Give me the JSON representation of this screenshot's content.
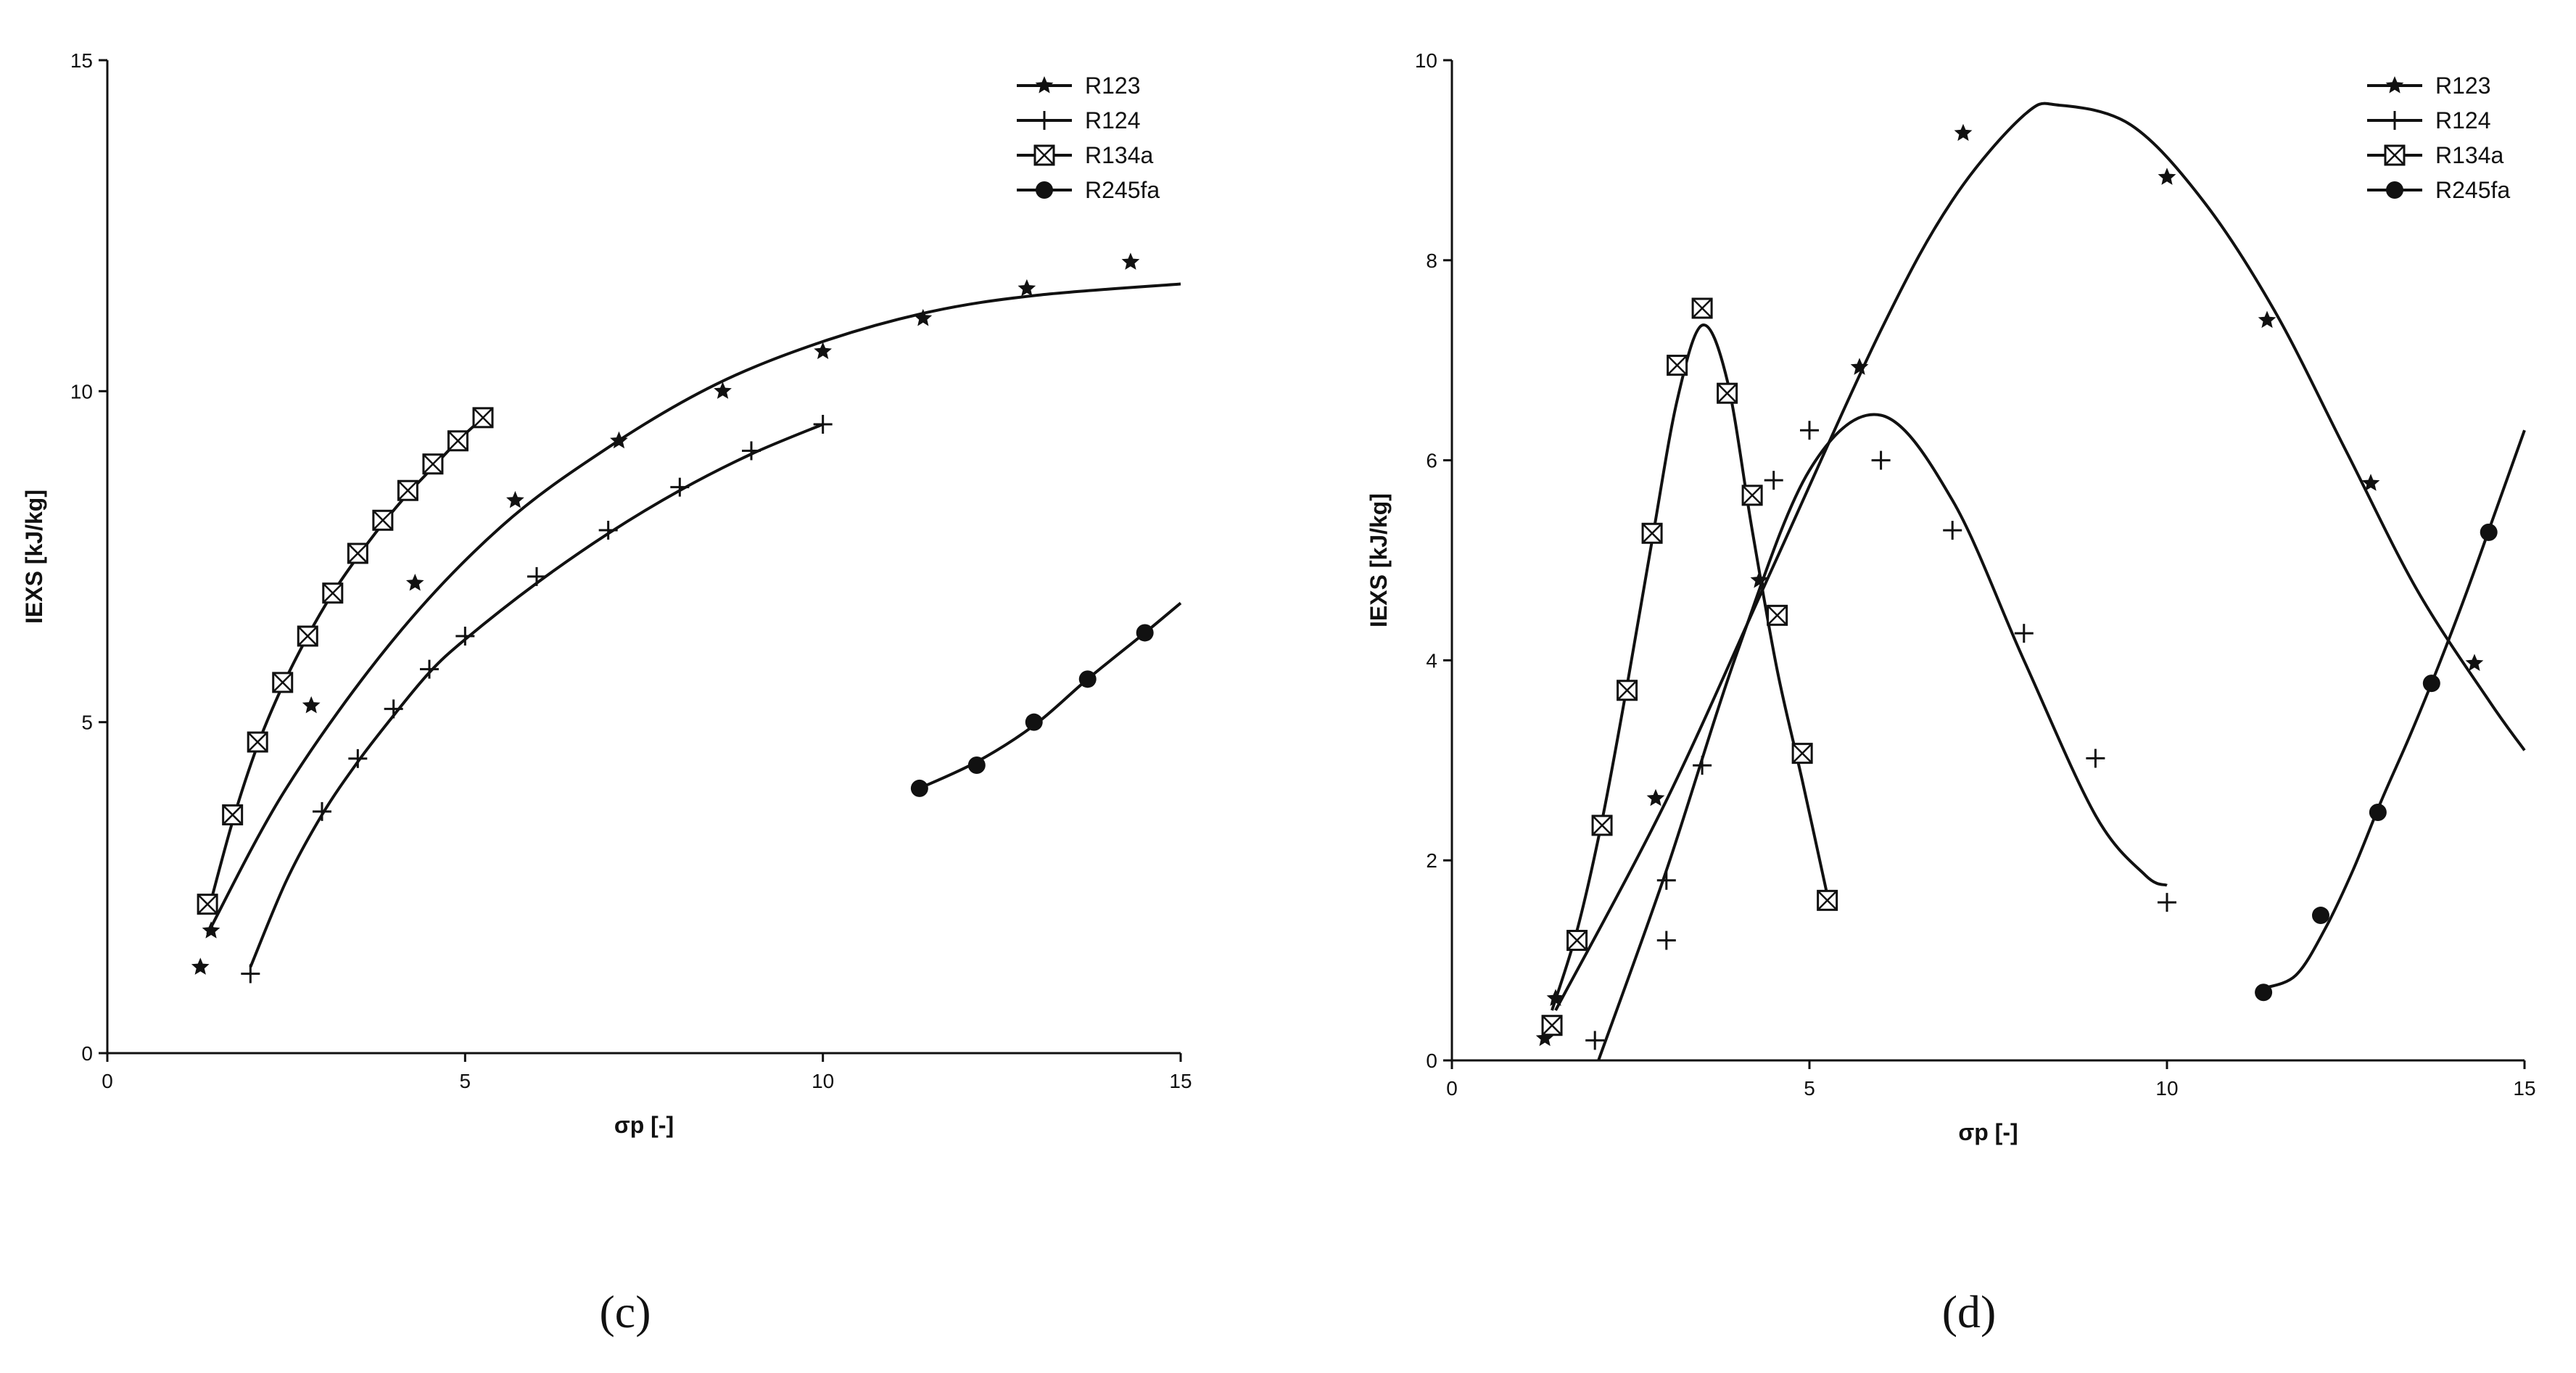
{
  "chart_data": [
    {
      "type": "scatter",
      "panel_label": "(c)",
      "xlabel": "σp [-]",
      "ylabel": "IEXS [kJ/kg]",
      "xlim": [
        0,
        15
      ],
      "ylim": [
        0,
        15
      ],
      "xticks": [
        0,
        5,
        10,
        15
      ],
      "yticks": [
        0,
        5,
        10,
        15
      ],
      "legend_position": "top-right",
      "series": [
        {
          "name": "R123",
          "marker": "star",
          "points": [
            [
              1.3,
              1.3
            ],
            [
              1.45,
              1.85
            ],
            [
              2.85,
              5.25
            ],
            [
              4.3,
              7.1
            ],
            [
              5.7,
              8.35
            ],
            [
              7.15,
              9.25
            ],
            [
              8.6,
              10.0
            ],
            [
              10.0,
              10.6
            ],
            [
              11.4,
              11.1
            ],
            [
              12.85,
              11.55
            ],
            [
              14.3,
              11.95
            ]
          ],
          "fit": [
            [
              1.4,
              1.8
            ],
            [
              2.5,
              4.0
            ],
            [
              4.0,
              6.25
            ],
            [
              5.5,
              7.95
            ],
            [
              7.0,
              9.15
            ],
            [
              8.5,
              10.1
            ],
            [
              10.0,
              10.75
            ],
            [
              11.5,
              11.2
            ],
            [
              13.0,
              11.45
            ],
            [
              15.0,
              11.62
            ]
          ]
        },
        {
          "name": "R124",
          "marker": "plus",
          "points": [
            [
              2.0,
              1.2
            ],
            [
              3.0,
              3.65
            ],
            [
              3.5,
              4.45
            ],
            [
              4.0,
              5.2
            ],
            [
              4.5,
              5.8
            ],
            [
              5.0,
              6.3
            ],
            [
              6.0,
              7.2
            ],
            [
              7.0,
              7.9
            ],
            [
              8.0,
              8.55
            ],
            [
              9.0,
              9.1
            ],
            [
              10.0,
              9.5
            ]
          ],
          "fit": [
            [
              2.0,
              1.3
            ],
            [
              2.5,
              2.6
            ],
            [
              3.0,
              3.6
            ],
            [
              3.5,
              4.4
            ],
            [
              4.0,
              5.1
            ],
            [
              4.5,
              5.75
            ],
            [
              5.0,
              6.25
            ],
            [
              6.0,
              7.1
            ],
            [
              7.0,
              7.85
            ],
            [
              8.0,
              8.5
            ],
            [
              9.0,
              9.05
            ],
            [
              10.0,
              9.5
            ]
          ]
        },
        {
          "name": "R134a",
          "marker": "boxed-x",
          "points": [
            [
              1.4,
              2.25
            ],
            [
              1.75,
              3.6
            ],
            [
              2.1,
              4.7
            ],
            [
              2.45,
              5.6
            ],
            [
              2.8,
              6.3
            ],
            [
              3.15,
              6.95
            ],
            [
              3.5,
              7.55
            ],
            [
              3.85,
              8.05
            ],
            [
              4.2,
              8.5
            ],
            [
              4.55,
              8.9
            ],
            [
              4.9,
              9.25
            ],
            [
              5.25,
              9.6
            ]
          ],
          "fit": [
            [
              1.4,
              2.1
            ],
            [
              1.75,
              3.5
            ],
            [
              2.1,
              4.65
            ],
            [
              2.45,
              5.55
            ],
            [
              2.8,
              6.3
            ],
            [
              3.15,
              6.95
            ],
            [
              3.5,
              7.5
            ],
            [
              3.85,
              8.0
            ],
            [
              4.2,
              8.45
            ],
            [
              4.55,
              8.85
            ],
            [
              4.9,
              9.25
            ],
            [
              5.25,
              9.6
            ]
          ]
        },
        {
          "name": "R245fa",
          "marker": "circle",
          "points": [
            [
              11.35,
              4.0
            ],
            [
              12.15,
              4.35
            ],
            [
              12.95,
              5.0
            ],
            [
              13.7,
              5.65
            ],
            [
              14.5,
              6.35
            ]
          ],
          "fit": [
            [
              11.35,
              4.0
            ],
            [
              12.15,
              4.4
            ],
            [
              12.95,
              4.95
            ],
            [
              13.7,
              5.65
            ],
            [
              14.5,
              6.35
            ],
            [
              15.0,
              6.8
            ]
          ]
        }
      ]
    },
    {
      "type": "scatter",
      "panel_label": "(d)",
      "xlabel": "σp [-]",
      "ylabel": "IEXS [kJ/kg]",
      "xlim": [
        0,
        15
      ],
      "ylim": [
        0,
        10
      ],
      "xticks": [
        0,
        5,
        10,
        15
      ],
      "yticks": [
        0,
        2,
        4,
        6,
        8,
        10
      ],
      "legend_position": "top-right",
      "series": [
        {
          "name": "R123",
          "marker": "star",
          "points": [
            [
              1.3,
              0.22
            ],
            [
              1.45,
              0.62
            ],
            [
              2.85,
              2.62
            ],
            [
              4.3,
              4.8
            ],
            [
              5.7,
              6.93
            ],
            [
              7.15,
              9.27
            ],
            [
              10.0,
              8.83
            ],
            [
              11.4,
              7.4
            ],
            [
              12.85,
              5.77
            ],
            [
              14.3,
              3.97
            ]
          ],
          "fit": [
            [
              1.45,
              0.5
            ],
            [
              3.0,
              2.6
            ],
            [
              4.5,
              4.95
            ],
            [
              6.0,
              7.3
            ],
            [
              7.0,
              8.6
            ],
            [
              8.0,
              9.45
            ],
            [
              8.5,
              9.55
            ],
            [
              9.5,
              9.35
            ],
            [
              10.5,
              8.6
            ],
            [
              11.5,
              7.5
            ],
            [
              12.5,
              6.1
            ],
            [
              13.5,
              4.7
            ],
            [
              14.5,
              3.6
            ],
            [
              15.0,
              3.1
            ]
          ]
        },
        {
          "name": "R124",
          "marker": "plus",
          "points": [
            [
              2.0,
              0.2
            ],
            [
              3.0,
              1.2
            ],
            [
              3.0,
              1.8
            ],
            [
              3.5,
              2.95
            ],
            [
              4.5,
              5.8
            ],
            [
              5.0,
              6.3
            ],
            [
              6.0,
              6.0
            ],
            [
              7.0,
              5.3
            ],
            [
              8.0,
              4.27
            ],
            [
              9.0,
              3.02
            ],
            [
              10.0,
              1.58
            ]
          ],
          "fit": [
            [
              2.05,
              0.0
            ],
            [
              3.0,
              1.9
            ],
            [
              4.0,
              4.1
            ],
            [
              5.0,
              5.9
            ],
            [
              6.0,
              6.45
            ],
            [
              7.0,
              5.6
            ],
            [
              8.0,
              4.0
            ],
            [
              9.0,
              2.45
            ],
            [
              9.7,
              1.85
            ],
            [
              10.0,
              1.75
            ]
          ]
        },
        {
          "name": "R134a",
          "marker": "boxed-x",
          "points": [
            [
              1.4,
              0.35
            ],
            [
              1.75,
              1.2
            ],
            [
              2.1,
              2.35
            ],
            [
              2.45,
              3.7
            ],
            [
              2.8,
              5.27
            ],
            [
              3.15,
              6.95
            ],
            [
              3.5,
              7.52
            ],
            [
              3.85,
              6.67
            ],
            [
              4.2,
              5.65
            ],
            [
              4.55,
              4.45
            ],
            [
              4.9,
              3.07
            ],
            [
              5.25,
              1.6
            ]
          ],
          "fit": [
            [
              1.4,
              0.5
            ],
            [
              1.75,
              1.3
            ],
            [
              2.1,
              2.4
            ],
            [
              2.45,
              3.75
            ],
            [
              2.8,
              5.2
            ],
            [
              3.15,
              6.6
            ],
            [
              3.5,
              7.35
            ],
            [
              3.85,
              6.8
            ],
            [
              4.2,
              5.3
            ],
            [
              4.55,
              3.9
            ],
            [
              4.9,
              2.8
            ],
            [
              5.25,
              1.65
            ]
          ]
        },
        {
          "name": "R245fa",
          "marker": "circle",
          "points": [
            [
              11.35,
              0.68
            ],
            [
              12.15,
              1.45
            ],
            [
              12.95,
              2.48
            ],
            [
              13.7,
              3.77
            ],
            [
              14.5,
              5.28
            ]
          ],
          "fit": [
            [
              11.35,
              0.72
            ],
            [
              11.8,
              0.85
            ],
            [
              12.2,
              1.3
            ],
            [
              12.6,
              1.9
            ],
            [
              13.0,
              2.6
            ],
            [
              13.4,
              3.25
            ],
            [
              13.8,
              3.95
            ],
            [
              14.2,
              4.7
            ],
            [
              14.6,
              5.5
            ],
            [
              15.0,
              6.3
            ]
          ]
        }
      ]
    }
  ]
}
